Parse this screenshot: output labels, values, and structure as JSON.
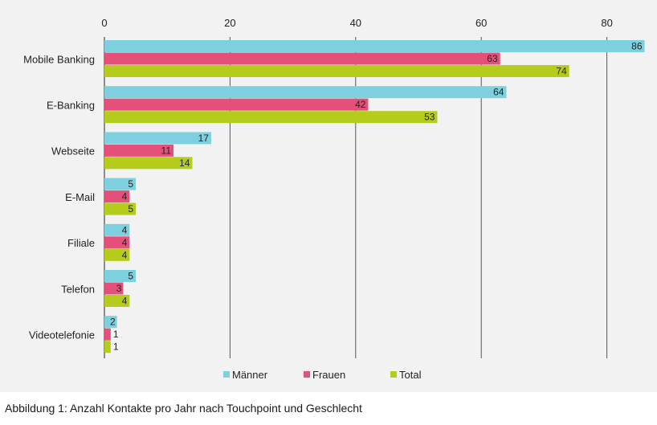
{
  "caption": "Abbildung 1: Anzahl Kontakte pro Jahr nach Touchpoint und Geschlecht",
  "colors": {
    "maenner": "#7fd0df",
    "frauen": "#e5507a",
    "total": "#b5cc1c",
    "grid": "#555555",
    "panel": "#f2f2f2"
  },
  "chart_data": {
    "type": "bar",
    "orientation": "horizontal",
    "title": "",
    "xlabel": "",
    "ylabel": "",
    "xlim": [
      0,
      86
    ],
    "x_ticks": [
      0,
      20,
      40,
      60,
      80
    ],
    "x_tick_labels": [
      "0",
      "20",
      "40",
      "60",
      "80"
    ],
    "axis_position": "top",
    "grid": "vertical",
    "legend_placement": "bottom-center",
    "categories": [
      "Mobile Banking",
      "E-Banking",
      "Webseite",
      "E-Mail",
      "Filiale",
      "Telefon",
      "Videotelefonie"
    ],
    "series": [
      {
        "name": "Männer",
        "color": "#7fd0df",
        "values": [
          86,
          64,
          17,
          5,
          4,
          5,
          2
        ]
      },
      {
        "name": "Frauen",
        "color": "#e5507a",
        "values": [
          63,
          42,
          11,
          4,
          4,
          3,
          1
        ]
      },
      {
        "name": "Total",
        "color": "#b5cc1c",
        "values": [
          74,
          53,
          14,
          5,
          4,
          4,
          1
        ]
      }
    ]
  }
}
